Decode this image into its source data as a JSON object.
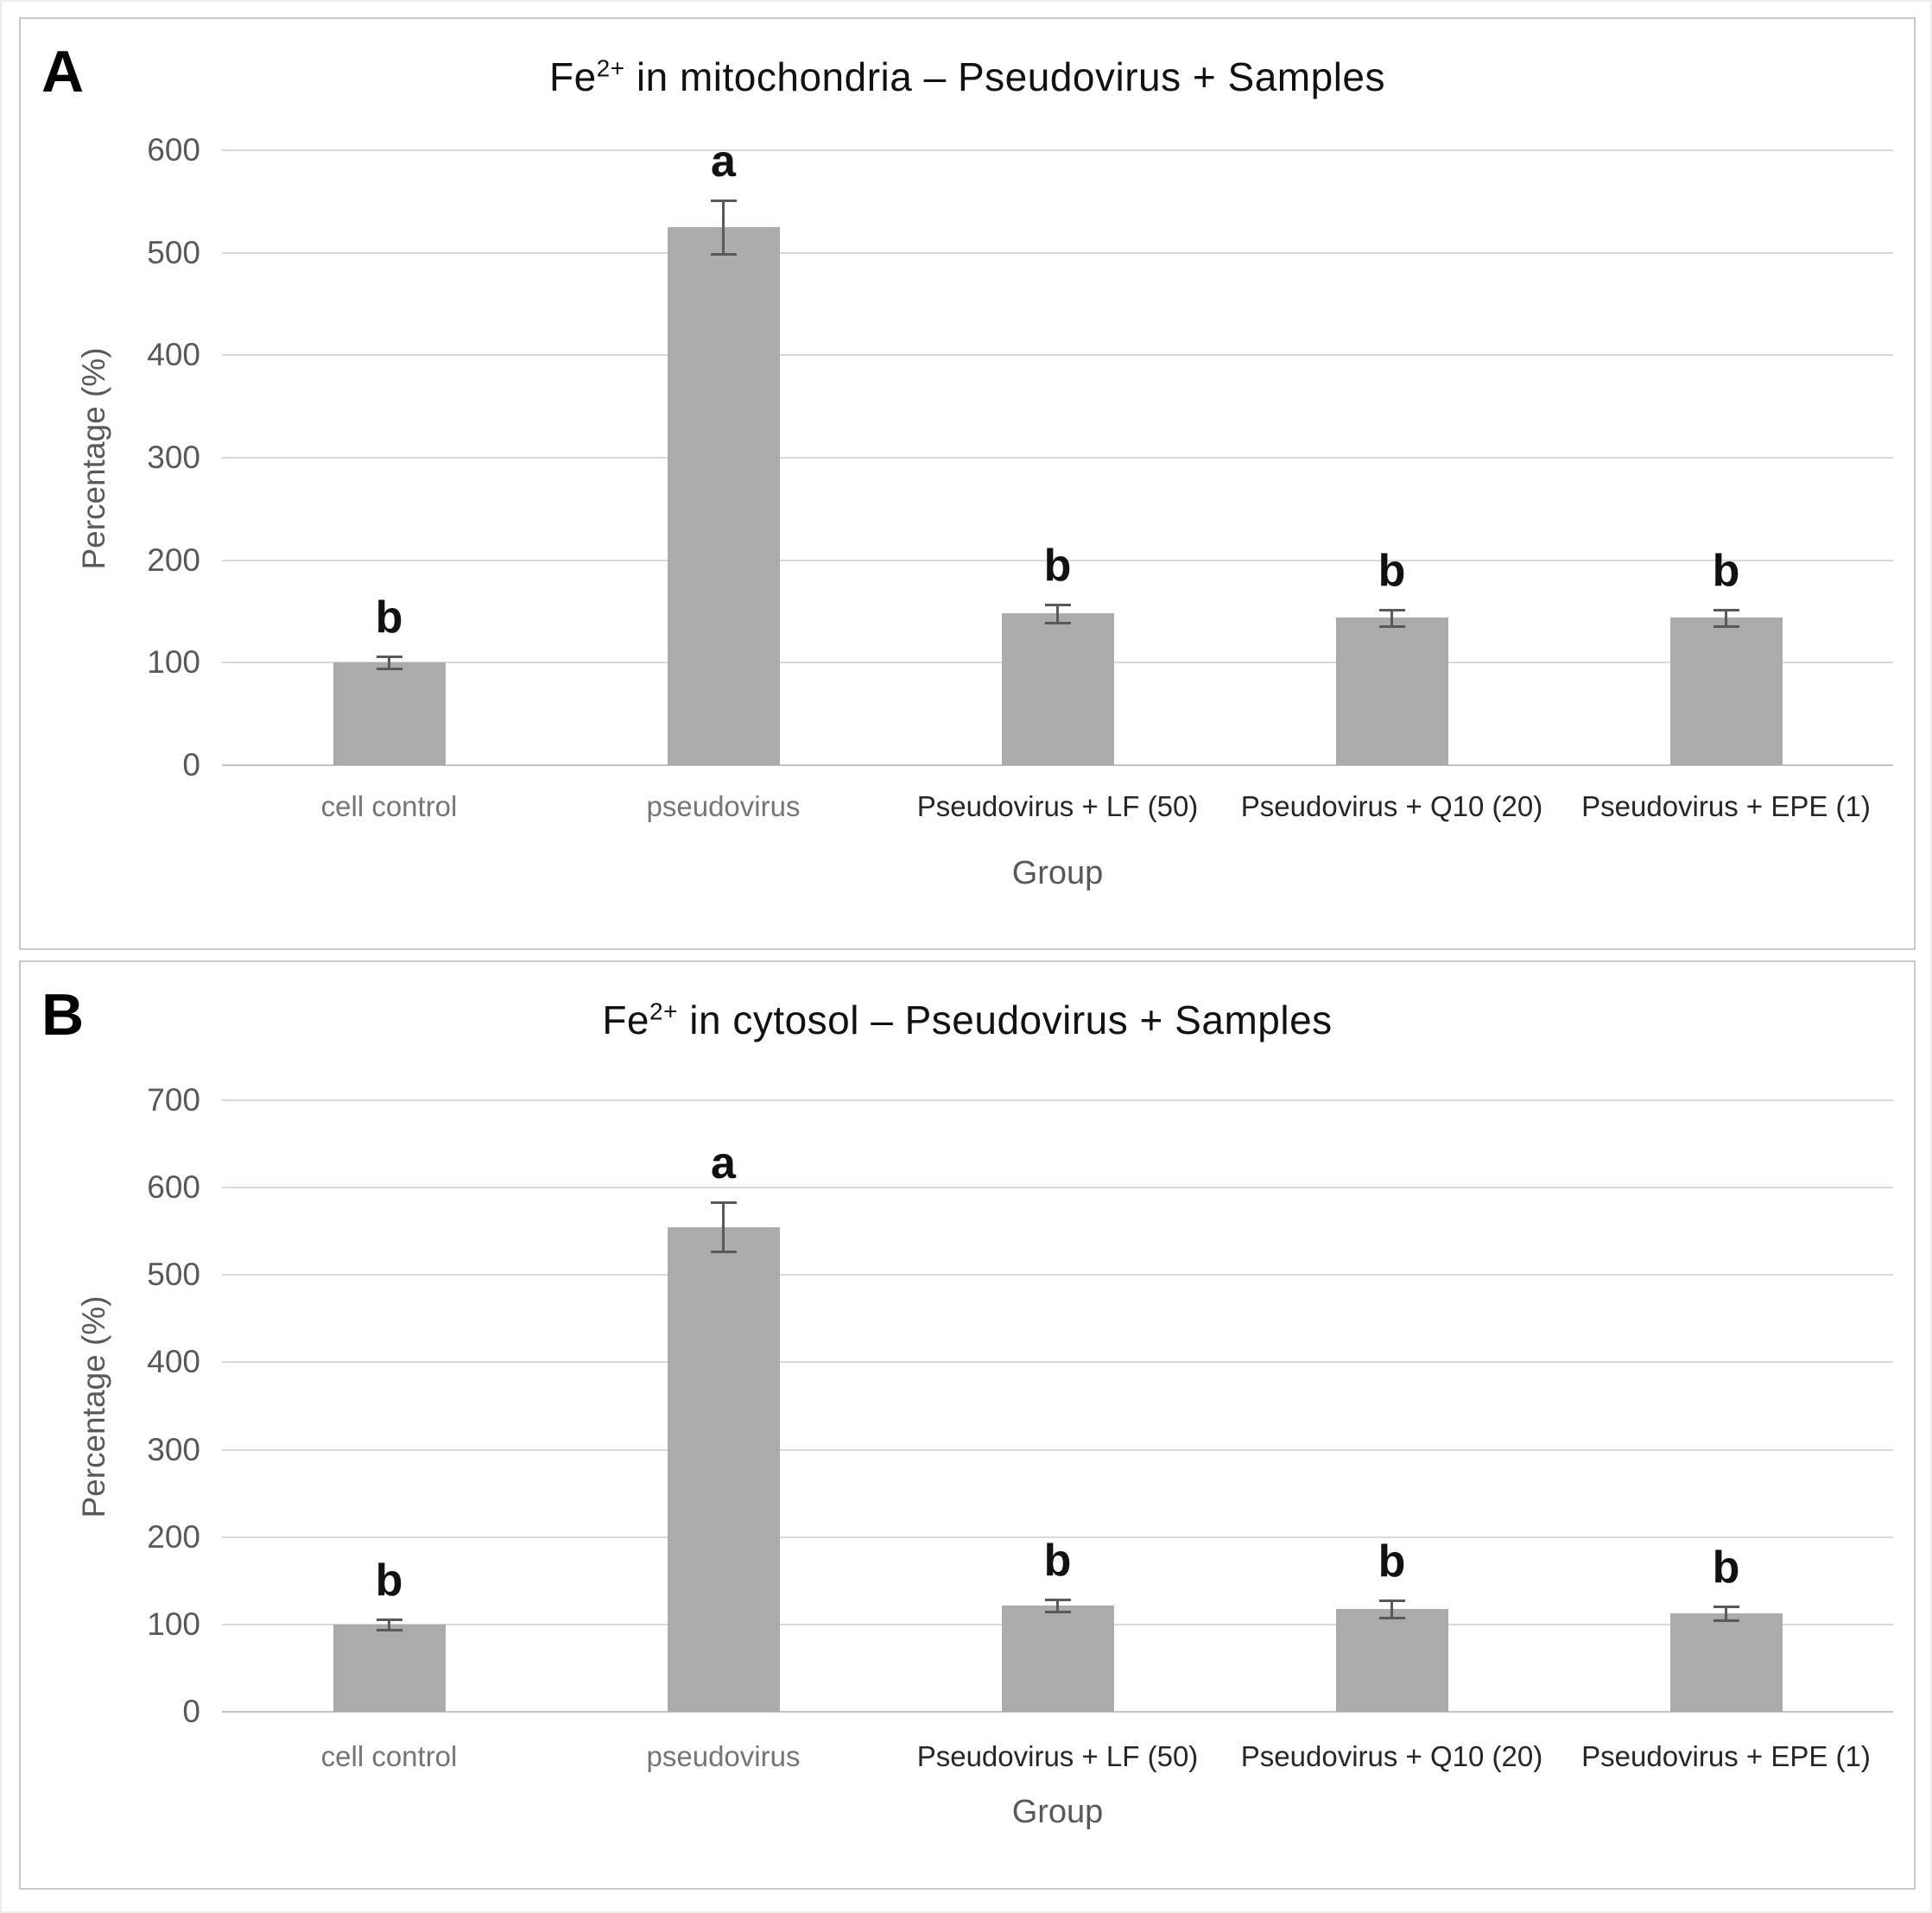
{
  "colors": {
    "bar_fill": "#ABABAB",
    "error_bar": "#595959",
    "gridline": "#D9D9D9",
    "baseline": "#C2C2C2",
    "tick_text": "#595959",
    "axis_label_text": "#595959",
    "category_muted": "#757575",
    "category_dark": "#262626",
    "title_text": "#111111",
    "panel_letter": "#000000",
    "sig_letter": "#111111",
    "panel_border": "#C9C9C9"
  },
  "chart_data": [
    {
      "type": "bar",
      "panel_letter": "A",
      "title_prefix": "Fe",
      "title_sup": "2+",
      "title_rest": " in mitochondria – Pseudovirus + Samples",
      "ylabel": "Percentage (%)",
      "xlabel": "Group",
      "ylim": [
        0,
        600
      ],
      "ytick_step": 100,
      "grid": true,
      "legend": "none",
      "categories": [
        "cell control",
        "pseudovirus",
        "Pseudovirus + LF (50)",
        "Pseudovirus + Q10 (20)",
        "Pseudovirus + EPE (1)"
      ],
      "category_styles": [
        "muted",
        "muted",
        "dark",
        "dark",
        "dark"
      ],
      "values": [
        100,
        525,
        148,
        144,
        144
      ],
      "errors": [
        6,
        26,
        9,
        8,
        8
      ],
      "sig_letters": [
        "b",
        "a",
        "b",
        "b",
        "b"
      ]
    },
    {
      "type": "bar",
      "panel_letter": "B",
      "title_prefix": "Fe",
      "title_sup": "2+",
      "title_rest": " in cytosol – Pseudovirus + Samples",
      "ylabel": "Percentage (%)",
      "xlabel": "Group",
      "ylim": [
        0,
        700
      ],
      "ytick_step": 100,
      "grid": true,
      "legend": "none",
      "categories": [
        "cell control",
        "pseudovirus",
        "Pseudovirus + LF (50)",
        "Pseudovirus + Q10 (20)",
        "Pseudovirus + EPE (1)"
      ],
      "category_styles": [
        "muted",
        "muted",
        "dark",
        "dark",
        "dark"
      ],
      "values": [
        100,
        555,
        122,
        118,
        113
      ],
      "errors": [
        6,
        28,
        7,
        10,
        8
      ],
      "sig_letters": [
        "b",
        "a",
        "b",
        "b",
        "b"
      ]
    }
  ]
}
